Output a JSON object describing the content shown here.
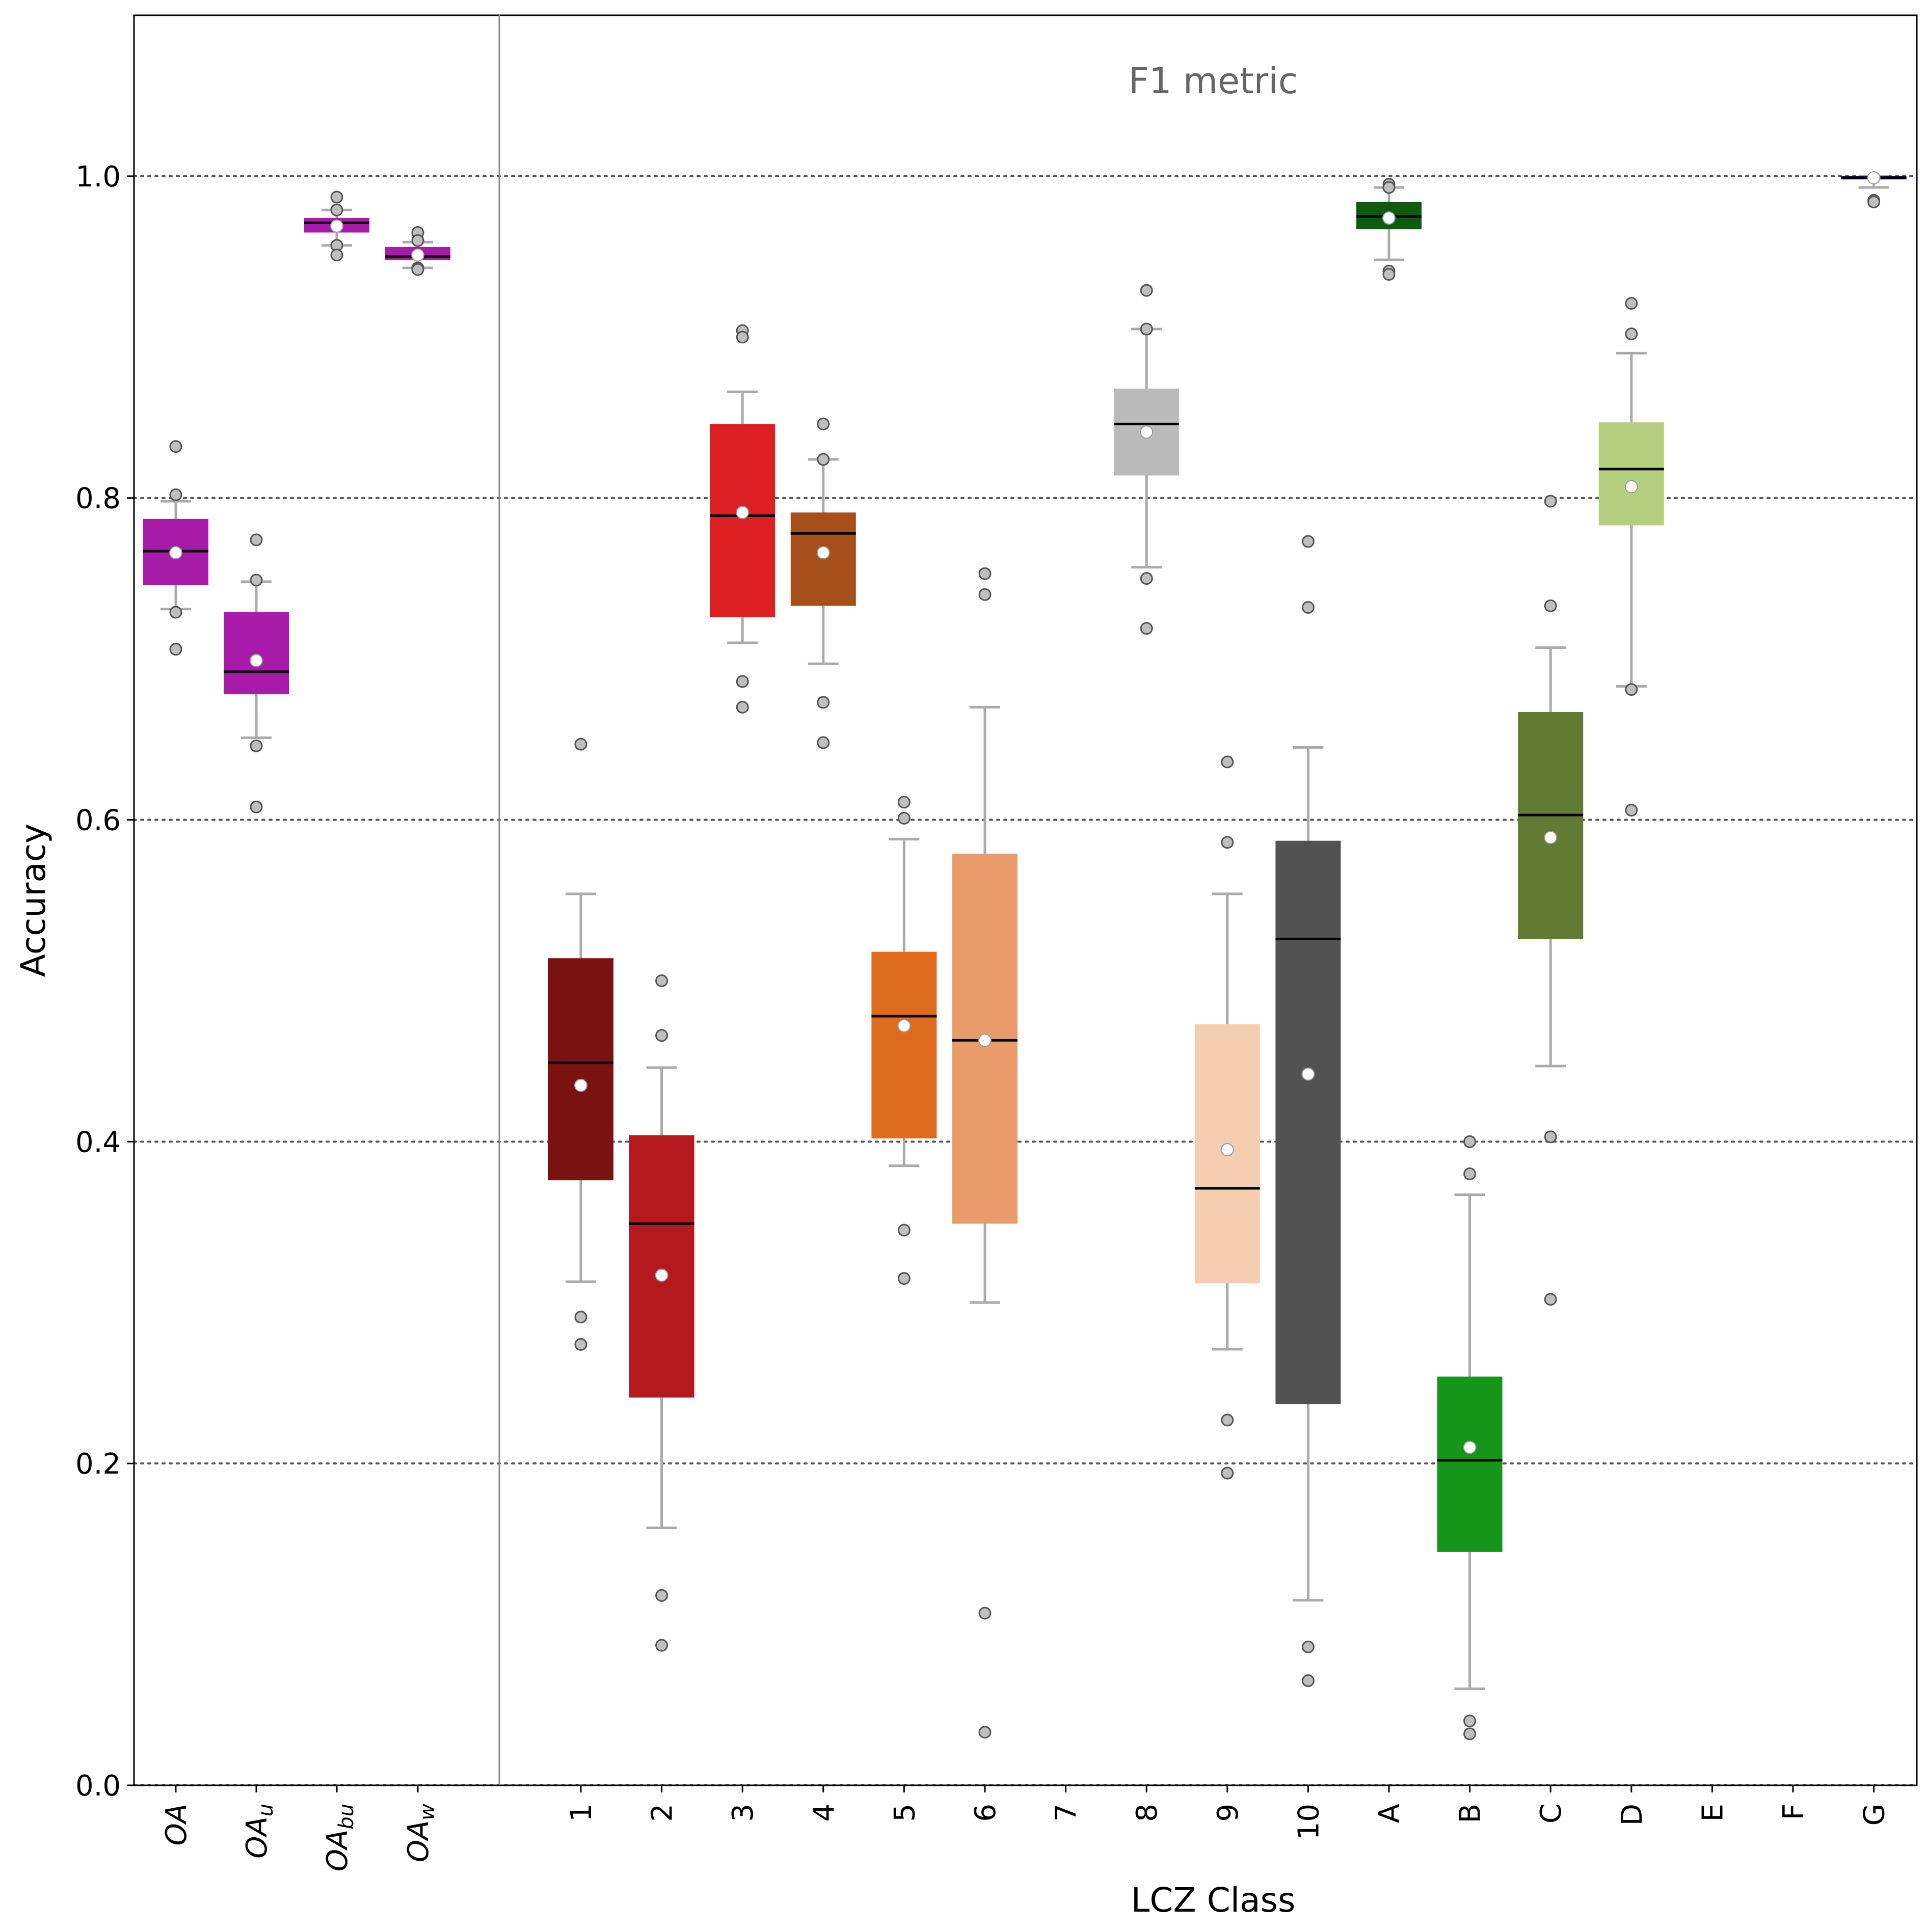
{
  "chart_data": {
    "type": "box",
    "title": "F1 metric",
    "xlabel": "LCZ Class",
    "ylabel": "Accuracy",
    "ylim": [
      0.0,
      1.1
    ],
    "yticks": [
      "0.0",
      "0.2",
      "0.4",
      "0.6",
      "0.8",
      "1.0"
    ],
    "grid": "horizontal dotted lines at y-ticks",
    "groups": [
      {
        "name": "overall",
        "categories": [
          {
            "label": "OA",
            "base": "OA",
            "sub": "",
            "color": "#a81aa8",
            "q1": 0.746,
            "median": 0.767,
            "q3": 0.787,
            "mean": 0.766,
            "whisker_low": 0.731,
            "whisker_high": 0.798,
            "outliers": [
              0.832,
              0.802,
              0.729,
              0.706
            ]
          },
          {
            "label": "OAu",
            "base": "OA",
            "sub": "u",
            "color": "#a81aa8",
            "q1": 0.678,
            "median": 0.692,
            "q3": 0.729,
            "mean": 0.699,
            "whisker_low": 0.651,
            "whisker_high": 0.748,
            "outliers": [
              0.774,
              0.749,
              0.646,
              0.608
            ]
          },
          {
            "label": "OAbu",
            "base": "OA",
            "sub": "bu",
            "color": "#a81aa8",
            "q1": 0.965,
            "median": 0.971,
            "q3": 0.974,
            "mean": 0.969,
            "whisker_low": 0.957,
            "whisker_high": 0.979,
            "outliers": [
              0.987,
              0.979,
              0.957,
              0.951
            ]
          },
          {
            "label": "OAw",
            "base": "OA",
            "sub": "w",
            "color": "#a81aa8",
            "q1": 0.948,
            "median": 0.95,
            "q3": 0.956,
            "mean": 0.951,
            "whisker_low": 0.943,
            "whisker_high": 0.959,
            "outliers": [
              0.965,
              0.96,
              0.943,
              0.942
            ]
          }
        ]
      },
      {
        "name": "lcz",
        "categories": [
          {
            "label": "1",
            "color": "#7a1212",
            "q1": 0.376,
            "median": 0.449,
            "q3": 0.514,
            "mean": 0.435,
            "whisker_low": 0.313,
            "whisker_high": 0.554,
            "outliers": [
              0.647,
              0.291,
              0.274
            ]
          },
          {
            "label": "2",
            "color": "#b5191e",
            "q1": 0.241,
            "median": 0.349,
            "q3": 0.404,
            "mean": 0.317,
            "whisker_low": 0.16,
            "whisker_high": 0.446,
            "outliers": [
              0.5,
              0.466,
              0.118,
              0.087
            ]
          },
          {
            "label": "3",
            "color": "#dd1f24",
            "q1": 0.726,
            "median": 0.789,
            "q3": 0.846,
            "mean": 0.791,
            "whisker_low": 0.71,
            "whisker_high": 0.866,
            "outliers": [
              0.904,
              0.9,
              0.686,
              0.67
            ]
          },
          {
            "label": "4",
            "color": "#a74f1a",
            "q1": 0.733,
            "median": 0.778,
            "q3": 0.791,
            "mean": 0.766,
            "whisker_low": 0.697,
            "whisker_high": 0.824,
            "outliers": [
              0.846,
              0.824,
              0.673,
              0.648
            ]
          },
          {
            "label": "5",
            "color": "#df6b1f",
            "q1": 0.402,
            "median": 0.478,
            "q3": 0.518,
            "mean": 0.472,
            "whisker_low": 0.385,
            "whisker_high": 0.588,
            "outliers": [
              0.611,
              0.601,
              0.345,
              0.315
            ]
          },
          {
            "label": "6",
            "color": "#e99c69",
            "q1": 0.349,
            "median": 0.463,
            "q3": 0.579,
            "mean": 0.463,
            "whisker_low": 0.3,
            "whisker_high": 0.67,
            "outliers": [
              0.753,
              0.74,
              0.107,
              0.033
            ]
          },
          {
            "label": "7",
            "color": "#ffffff",
            "empty": true
          },
          {
            "label": "8",
            "color": "#bababa",
            "q1": 0.814,
            "median": 0.846,
            "q3": 0.868,
            "mean": 0.841,
            "whisker_low": 0.757,
            "whisker_high": 0.905,
            "outliers": [
              0.929,
              0.905,
              0.75,
              0.719
            ]
          },
          {
            "label": "9",
            "color": "#f5cdb0",
            "q1": 0.312,
            "median": 0.371,
            "q3": 0.473,
            "mean": 0.395,
            "whisker_low": 0.271,
            "whisker_high": 0.554,
            "outliers": [
              0.636,
              0.586,
              0.227,
              0.194
            ]
          },
          {
            "label": "10",
            "color": "#525252",
            "q1": 0.237,
            "median": 0.526,
            "q3": 0.587,
            "mean": 0.442,
            "whisker_low": 0.115,
            "whisker_high": 0.645,
            "outliers": [
              0.773,
              0.732,
              0.086,
              0.065
            ]
          },
          {
            "label": "A",
            "color": "#0d5c0d",
            "q1": 0.967,
            "median": 0.975,
            "q3": 0.984,
            "mean": 0.974,
            "whisker_low": 0.948,
            "whisker_high": 0.993,
            "outliers": [
              0.995,
              0.993,
              0.941,
              0.939
            ]
          },
          {
            "label": "B",
            "color": "#15961a",
            "q1": 0.145,
            "median": 0.202,
            "q3": 0.254,
            "mean": 0.21,
            "whisker_low": 0.06,
            "whisker_high": 0.367,
            "outliers": [
              0.4,
              0.38,
              0.04,
              0.032
            ]
          },
          {
            "label": "C",
            "color": "#627b32",
            "q1": 0.526,
            "median": 0.603,
            "q3": 0.667,
            "mean": 0.589,
            "whisker_low": 0.447,
            "whisker_high": 0.707,
            "outliers": [
              0.798,
              0.733,
              0.403,
              0.302
            ]
          },
          {
            "label": "D",
            "color": "#b3cf7f",
            "q1": 0.783,
            "median": 0.818,
            "q3": 0.847,
            "mean": 0.807,
            "whisker_low": 0.683,
            "whisker_high": 0.89,
            "outliers": [
              0.921,
              0.902,
              0.681,
              0.606
            ]
          },
          {
            "label": "E",
            "color": "#ffffff",
            "empty": true
          },
          {
            "label": "F",
            "color": "#ffffff",
            "empty": true
          },
          {
            "label": "G",
            "color": "#14145a",
            "q1": 0.998,
            "median": 0.999,
            "q3": 1.0,
            "mean": 0.999,
            "whisker_low": 0.993,
            "whisker_high": 1.0,
            "outliers": [
              0.985,
              0.984
            ]
          }
        ]
      }
    ],
    "styles": {
      "whisker_color": "#aaaaaa",
      "median_color": "#000000",
      "mean_marker_fill": "#ffffff",
      "outlier_fill": "#bfbfbf",
      "outlier_stroke": "#555555",
      "grid_color": "#555555",
      "separator_color": "#888888"
    }
  }
}
